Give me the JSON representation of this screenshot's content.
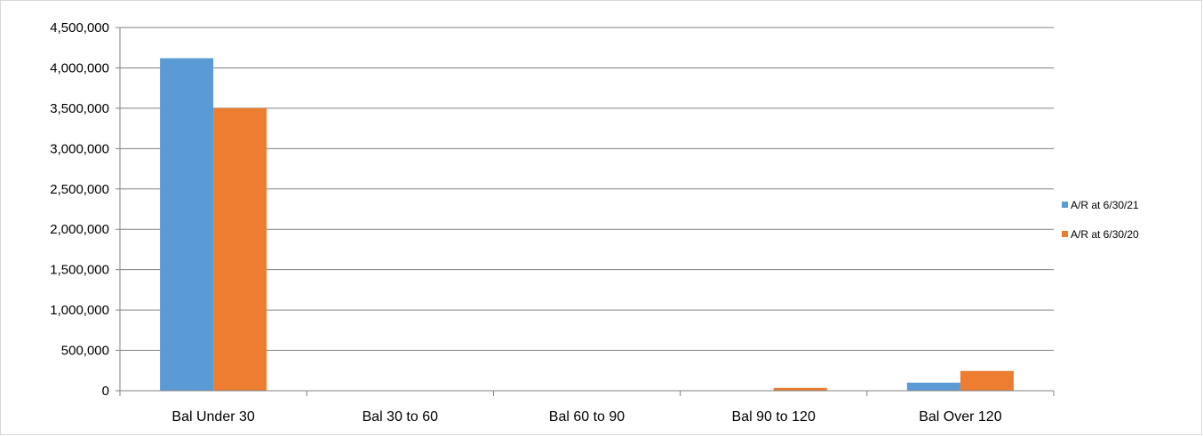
{
  "chart_data": {
    "type": "bar",
    "categories": [
      "Bal Under 30",
      "Bal 30 to 60",
      "Bal 60 to 90",
      "Bal 90 to 120",
      "Bal Over 120"
    ],
    "series": [
      {
        "name": "A/R at 6/30/21",
        "color": "#5b9bd5",
        "values": [
          4120000,
          0,
          0,
          0,
          100000
        ]
      },
      {
        "name": "A/R at 6/30/20",
        "color": "#ed7d31",
        "values": [
          3500000,
          0,
          0,
          35000,
          245000
        ]
      }
    ],
    "ylim": [
      0,
      4500000
    ],
    "yticks": [
      0,
      500000,
      1000000,
      1500000,
      2000000,
      2500000,
      3000000,
      3500000,
      4000000,
      4500000
    ],
    "ytick_labels": [
      "0",
      "500,000",
      "1,000,000",
      "1,500,000",
      "2,000,000",
      "2,500,000",
      "3,000,000",
      "3,500,000",
      "4,000,000",
      "4,500,000"
    ],
    "grid": true,
    "legend_position": "right"
  }
}
